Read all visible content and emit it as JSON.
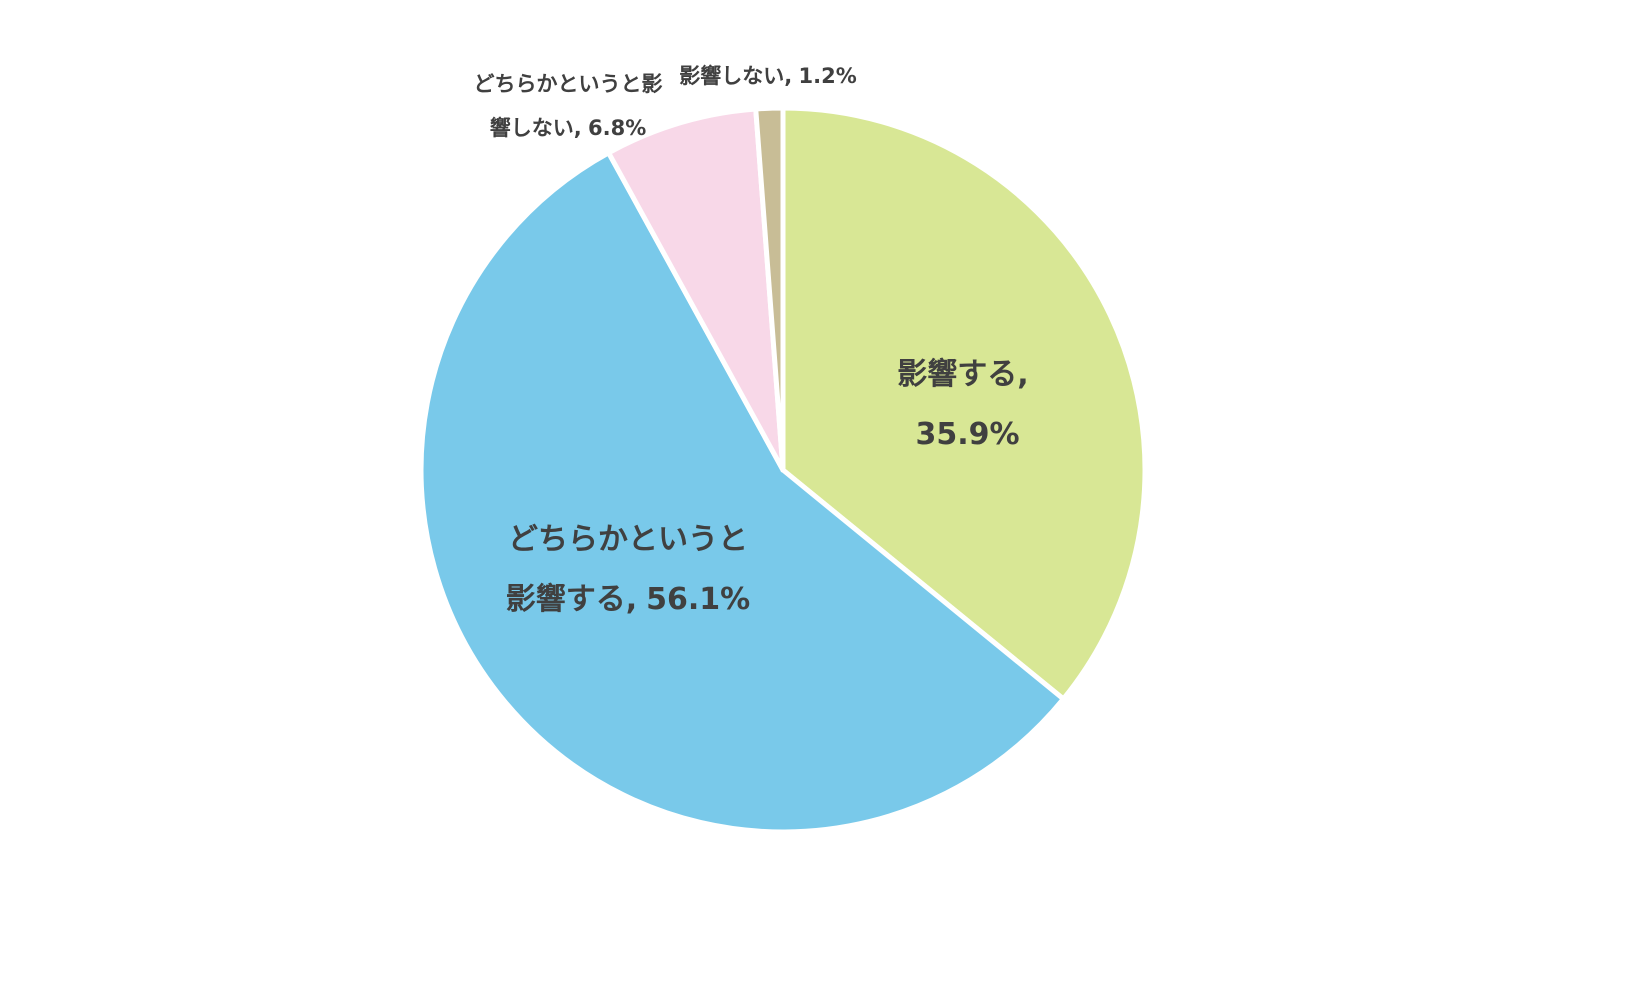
{
  "chart_data": {
    "type": "pie",
    "categories": [
      "影響する,",
      "どちらかというと影響する,",
      "どちらかというと影響しない,",
      "影響しない,"
    ],
    "values": [
      35.9,
      56.1,
      6.8,
      1.2
    ],
    "value_labels": [
      "35.9%",
      "56.1%",
      "6.8%",
      "1.2%"
    ],
    "colors": [
      "#d8e795",
      "#79c9ea",
      "#f8d8e8",
      "#c8bd96"
    ]
  }
}
